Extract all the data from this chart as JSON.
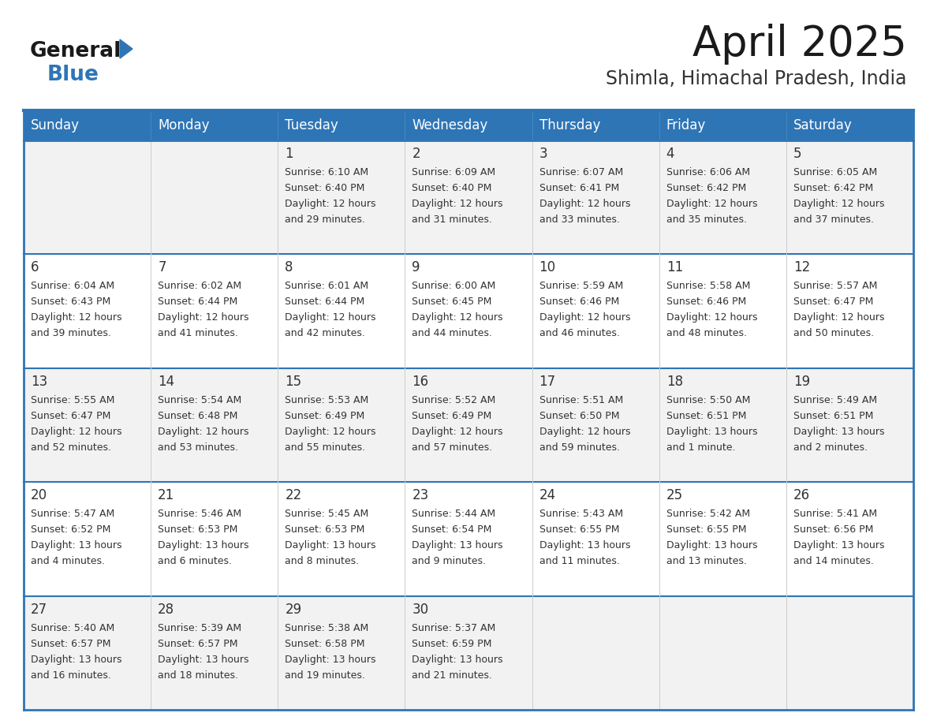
{
  "title": "April 2025",
  "subtitle": "Shimla, Himachal Pradesh, India",
  "days_of_week": [
    "Sunday",
    "Monday",
    "Tuesday",
    "Wednesday",
    "Thursday",
    "Friday",
    "Saturday"
  ],
  "header_bg": "#2E75B6",
  "header_text": "#FFFFFF",
  "row_bg_even": "#F2F2F2",
  "row_bg_odd": "#FFFFFF",
  "cell_text": "#333333",
  "grid_line": "#2E75B6",
  "title_color": "#1a1a1a",
  "subtitle_color": "#333333",
  "logo_general_color": "#1a1a1a",
  "logo_blue_color": "#2E75B6",
  "calendar": [
    [
      null,
      null,
      {
        "day": "1",
        "sunrise": "6:10 AM",
        "sunset": "6:40 PM",
        "daylight": "12 hours\nand 29 minutes."
      },
      {
        "day": "2",
        "sunrise": "6:09 AM",
        "sunset": "6:40 PM",
        "daylight": "12 hours\nand 31 minutes."
      },
      {
        "day": "3",
        "sunrise": "6:07 AM",
        "sunset": "6:41 PM",
        "daylight": "12 hours\nand 33 minutes."
      },
      {
        "day": "4",
        "sunrise": "6:06 AM",
        "sunset": "6:42 PM",
        "daylight": "12 hours\nand 35 minutes."
      },
      {
        "day": "5",
        "sunrise": "6:05 AM",
        "sunset": "6:42 PM",
        "daylight": "12 hours\nand 37 minutes."
      }
    ],
    [
      {
        "day": "6",
        "sunrise": "6:04 AM",
        "sunset": "6:43 PM",
        "daylight": "12 hours\nand 39 minutes."
      },
      {
        "day": "7",
        "sunrise": "6:02 AM",
        "sunset": "6:44 PM",
        "daylight": "12 hours\nand 41 minutes."
      },
      {
        "day": "8",
        "sunrise": "6:01 AM",
        "sunset": "6:44 PM",
        "daylight": "12 hours\nand 42 minutes."
      },
      {
        "day": "9",
        "sunrise": "6:00 AM",
        "sunset": "6:45 PM",
        "daylight": "12 hours\nand 44 minutes."
      },
      {
        "day": "10",
        "sunrise": "5:59 AM",
        "sunset": "6:46 PM",
        "daylight": "12 hours\nand 46 minutes."
      },
      {
        "day": "11",
        "sunrise": "5:58 AM",
        "sunset": "6:46 PM",
        "daylight": "12 hours\nand 48 minutes."
      },
      {
        "day": "12",
        "sunrise": "5:57 AM",
        "sunset": "6:47 PM",
        "daylight": "12 hours\nand 50 minutes."
      }
    ],
    [
      {
        "day": "13",
        "sunrise": "5:55 AM",
        "sunset": "6:47 PM",
        "daylight": "12 hours\nand 52 minutes."
      },
      {
        "day": "14",
        "sunrise": "5:54 AM",
        "sunset": "6:48 PM",
        "daylight": "12 hours\nand 53 minutes."
      },
      {
        "day": "15",
        "sunrise": "5:53 AM",
        "sunset": "6:49 PM",
        "daylight": "12 hours\nand 55 minutes."
      },
      {
        "day": "16",
        "sunrise": "5:52 AM",
        "sunset": "6:49 PM",
        "daylight": "12 hours\nand 57 minutes."
      },
      {
        "day": "17",
        "sunrise": "5:51 AM",
        "sunset": "6:50 PM",
        "daylight": "12 hours\nand 59 minutes."
      },
      {
        "day": "18",
        "sunrise": "5:50 AM",
        "sunset": "6:51 PM",
        "daylight": "13 hours\nand 1 minute."
      },
      {
        "day": "19",
        "sunrise": "5:49 AM",
        "sunset": "6:51 PM",
        "daylight": "13 hours\nand 2 minutes."
      }
    ],
    [
      {
        "day": "20",
        "sunrise": "5:47 AM",
        "sunset": "6:52 PM",
        "daylight": "13 hours\nand 4 minutes."
      },
      {
        "day": "21",
        "sunrise": "5:46 AM",
        "sunset": "6:53 PM",
        "daylight": "13 hours\nand 6 minutes."
      },
      {
        "day": "22",
        "sunrise": "5:45 AM",
        "sunset": "6:53 PM",
        "daylight": "13 hours\nand 8 minutes."
      },
      {
        "day": "23",
        "sunrise": "5:44 AM",
        "sunset": "6:54 PM",
        "daylight": "13 hours\nand 9 minutes."
      },
      {
        "day": "24",
        "sunrise": "5:43 AM",
        "sunset": "6:55 PM",
        "daylight": "13 hours\nand 11 minutes."
      },
      {
        "day": "25",
        "sunrise": "5:42 AM",
        "sunset": "6:55 PM",
        "daylight": "13 hours\nand 13 minutes."
      },
      {
        "day": "26",
        "sunrise": "5:41 AM",
        "sunset": "6:56 PM",
        "daylight": "13 hours\nand 14 minutes."
      }
    ],
    [
      {
        "day": "27",
        "sunrise": "5:40 AM",
        "sunset": "6:57 PM",
        "daylight": "13 hours\nand 16 minutes."
      },
      {
        "day": "28",
        "sunrise": "5:39 AM",
        "sunset": "6:57 PM",
        "daylight": "13 hours\nand 18 minutes."
      },
      {
        "day": "29",
        "sunrise": "5:38 AM",
        "sunset": "6:58 PM",
        "daylight": "13 hours\nand 19 minutes."
      },
      {
        "day": "30",
        "sunrise": "5:37 AM",
        "sunset": "6:59 PM",
        "daylight": "13 hours\nand 21 minutes."
      },
      null,
      null,
      null
    ]
  ]
}
